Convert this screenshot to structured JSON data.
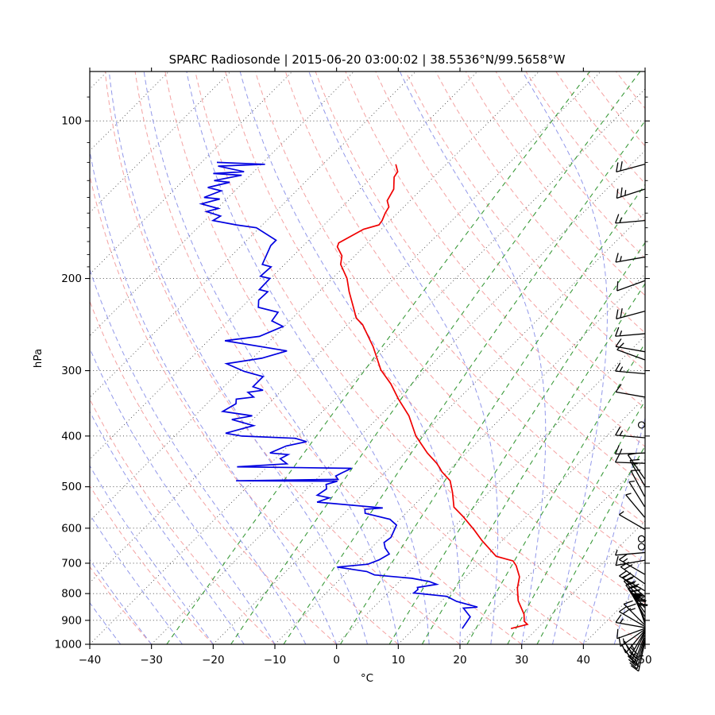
{
  "title": "SPARC Radiosonde | 2015-06-20 03:00:02 | 38.5536°N/99.5658°W",
  "axes": {
    "xlabel": "°C",
    "ylabel": "hPa",
    "xticks": [
      -40,
      -30,
      -20,
      -10,
      0,
      10,
      20,
      30,
      40,
      50
    ],
    "yticks": [
      100,
      200,
      300,
      400,
      500,
      600,
      700,
      800,
      900,
      1000
    ],
    "yticks_minor": [
      90,
      110,
      120,
      130,
      140,
      150,
      160,
      170,
      180,
      190
    ]
  },
  "chart_data": {
    "type": "line",
    "variant": "skew-t-log-p",
    "title": "SPARC Radiosonde | 2015-06-20 03:00:02 | 38.5536°N/99.5658°W",
    "xlabel": "°C",
    "ylabel": "hPa",
    "t_min": -40,
    "t_max": 50,
    "p_bottom": 1000,
    "p_top": 80.45,
    "skew_deg": 45,
    "grid": "on",
    "legend": "none",
    "colors": {
      "temperature": "#f00000",
      "dewpoint": "#0000e0",
      "isotherm": "#4d4d4d",
      "isobar": "#3d3d3d",
      "dry_adiabat": "#f4a2a2",
      "moist_adiabat": "#9298ea",
      "mixing_ratio": "#3a9a3a",
      "barb": "#000000"
    },
    "isotherms_c": {
      "start": -150,
      "end": 50,
      "step": 10
    },
    "dry_adiabats_theta_c": {
      "start": -40,
      "end": 200,
      "step": 10
    },
    "moist_adiabats_t0_c": {
      "start": -40,
      "end": 45,
      "step": 5
    },
    "mixing_ratio_g_kg": [
      0.4,
      1,
      2,
      4,
      7,
      10,
      16,
      24,
      32
    ],
    "pressure_gridlines_hpa": [
      100,
      200,
      300,
      400,
      500,
      600,
      700,
      800,
      900,
      1000
    ],
    "series": [
      {
        "name": "temperature",
        "units": [
          "hPa",
          "degC"
        ],
        "points": [
          [
            933,
            25.7
          ],
          [
            916,
            27.7
          ],
          [
            904,
            26.7
          ],
          [
            876,
            25.5
          ],
          [
            826,
            22.4
          ],
          [
            781,
            20.2
          ],
          [
            743,
            18.7
          ],
          [
            708,
            16.4
          ],
          [
            693,
            15.1
          ],
          [
            679,
            11.6
          ],
          [
            633,
            6.7
          ],
          [
            605,
            3.8
          ],
          [
            570,
            -0.2
          ],
          [
            547,
            -3.2
          ],
          [
            513,
            -5.8
          ],
          [
            487,
            -8.1
          ],
          [
            468,
            -10.9
          ],
          [
            460,
            -11.9
          ],
          [
            451,
            -13.1
          ],
          [
            431,
            -16.3
          ],
          [
            400,
            -20.9
          ],
          [
            366,
            -25.3
          ],
          [
            340,
            -29.7
          ],
          [
            318,
            -33.4
          ],
          [
            299,
            -37.3
          ],
          [
            270,
            -42.3
          ],
          [
            245,
            -47.6
          ],
          [
            238,
            -49.7
          ],
          [
            226,
            -52.1
          ],
          [
            212,
            -55.1
          ],
          [
            200,
            -57.6
          ],
          [
            188,
            -60.9
          ],
          [
            181,
            -62.1
          ],
          [
            174,
            -64.3
          ],
          [
            171,
            -64.7
          ],
          [
            161,
            -62.9
          ],
          [
            158,
            -61.1
          ],
          [
            155,
            -61.3
          ],
          [
            150,
            -62.0
          ],
          [
            146,
            -62.4
          ],
          [
            142,
            -63.7
          ],
          [
            135,
            -64.5
          ],
          [
            128,
            -66.4
          ],
          [
            125,
            -66.7
          ],
          [
            121,
            -68.2
          ]
        ]
      },
      {
        "name": "dewpoint",
        "units": [
          "hPa",
          "degC"
        ],
        "points": [
          [
            933,
            17.8
          ],
          [
            886,
            17.2
          ],
          [
            853,
            14.7
          ],
          [
            849,
            16.8
          ],
          [
            828,
            12.5
          ],
          [
            810,
            10.1
          ],
          [
            798,
            4.2
          ],
          [
            786,
            4.3
          ],
          [
            779,
            3.9
          ],
          [
            768,
            6.5
          ],
          [
            759,
            4.9
          ],
          [
            748,
            1.5
          ],
          [
            737,
            -5.1
          ],
          [
            726,
            -6.9
          ],
          [
            712,
            -12.4
          ],
          [
            703,
            -7.9
          ],
          [
            690,
            -6.8
          ],
          [
            672,
            -6.1
          ],
          [
            655,
            -7.7
          ],
          [
            639,
            -8.8
          ],
          [
            625,
            -8.5
          ],
          [
            610,
            -9.0
          ],
          [
            592,
            -9.6
          ],
          [
            577,
            -11.6
          ],
          [
            562,
            -16.6
          ],
          [
            552,
            -17.3
          ],
          [
            549,
            -14.6
          ],
          [
            535,
            -26.2
          ],
          [
            525,
            -24.9
          ],
          [
            519,
            -27.3
          ],
          [
            505,
            -26.8
          ],
          [
            495,
            -27.6
          ],
          [
            488,
            -26.3
          ],
          [
            487,
            -42.8
          ],
          [
            484,
            -26.5
          ],
          [
            477,
            -27.4
          ],
          [
            470,
            -26.9
          ],
          [
            461,
            -26.1
          ],
          [
            458,
            -44.9
          ],
          [
            452,
            -37.3
          ],
          [
            442,
            -39.2
          ],
          [
            434,
            -38.6
          ],
          [
            431,
            -41.8
          ],
          [
            418,
            -40.3
          ],
          [
            410,
            -37.7
          ],
          [
            404,
            -40.1
          ],
          [
            400,
            -49.1
          ],
          [
            395,
            -52.2
          ],
          [
            382,
            -48.9
          ],
          [
            372,
            -53.4
          ],
          [
            366,
            -50.7
          ],
          [
            359,
            -56.2
          ],
          [
            347,
            -55.3
          ],
          [
            340,
            -56.0
          ],
          [
            337,
            -53.5
          ],
          [
            330,
            -55.2
          ],
          [
            327,
            -53.1
          ],
          [
            322,
            -55.3
          ],
          [
            308,
            -55.3
          ],
          [
            301,
            -59.2
          ],
          [
            291,
            -63.3
          ],
          [
            284,
            -58.5
          ],
          [
            275,
            -55.6
          ],
          [
            263,
            -67.3
          ],
          [
            258,
            -62.4
          ],
          [
            247,
            -60.2
          ],
          [
            241,
            -62.9
          ],
          [
            232,
            -63.3
          ],
          [
            227,
            -67.3
          ],
          [
            220,
            -68.4
          ],
          [
            212,
            -68.3
          ],
          [
            210,
            -70.0
          ],
          [
            200,
            -70.1
          ],
          [
            198,
            -72.0
          ],
          [
            190,
            -71.8
          ],
          [
            188,
            -73.6
          ],
          [
            173,
            -75.3
          ],
          [
            169,
            -75.3
          ],
          [
            160,
            -80.5
          ],
          [
            158,
            -84.2
          ],
          [
            155,
            -88.7
          ],
          [
            152,
            -88.2
          ],
          [
            149,
            -91.2
          ],
          [
            147,
            -89.8
          ],
          [
            144,
            -93.3
          ],
          [
            141,
            -91.1
          ],
          [
            140,
            -93.9
          ],
          [
            136,
            -92.2
          ],
          [
            134,
            -94.9
          ],
          [
            131,
            -92.2
          ],
          [
            130,
            -95.0
          ],
          [
            127,
            -91.4
          ],
          [
            126,
            -96.3
          ],
          [
            125,
            -91.6
          ],
          [
            122,
            -96.7
          ],
          [
            121,
            -89.4
          ],
          [
            120,
            -97.5
          ]
        ]
      }
    ],
    "wind_barbs": {
      "note": "p_hpa, staff_screen_angle_deg (null = calm circle), full_barbs, half_barbs, flags",
      "list": [
        [
          121,
          195,
          2,
          0,
          0
        ],
        [
          135,
          198,
          2,
          1,
          0
        ],
        [
          155,
          185,
          1,
          1,
          0
        ],
        [
          182,
          190,
          1,
          1,
          0
        ],
        [
          202,
          200,
          1,
          0,
          0
        ],
        [
          231,
          195,
          2,
          0,
          0
        ],
        [
          255,
          185,
          1,
          1,
          0
        ],
        [
          276,
          170,
          1,
          0,
          0
        ],
        [
          286,
          160,
          1,
          0,
          0
        ],
        [
          304,
          175,
          1,
          1,
          0
        ],
        [
          337,
          170,
          1,
          0,
          0
        ],
        [
          381,
          null,
          0,
          0,
          0
        ],
        [
          403,
          175,
          1,
          1,
          0
        ],
        [
          431,
          182,
          1,
          1,
          0
        ],
        [
          451,
          178,
          1,
          0,
          0
        ],
        [
          483,
          125,
          1,
          0,
          0
        ],
        [
          498,
          120,
          1,
          1,
          0
        ],
        [
          522,
          118,
          1,
          0,
          0
        ],
        [
          546,
          122,
          0,
          1,
          0
        ],
        [
          572,
          130,
          0,
          1,
          0
        ],
        [
          603,
          150,
          0,
          1,
          0
        ],
        [
          629,
          null,
          0,
          0,
          0
        ],
        [
          651,
          null,
          0,
          0,
          0
        ],
        [
          668,
          185,
          0,
          1,
          0
        ],
        [
          691,
          190,
          1,
          0,
          0
        ],
        [
          735,
          150,
          1,
          1,
          0
        ],
        [
          766,
          145,
          2,
          0,
          0
        ],
        [
          790,
          150,
          2,
          1,
          0
        ],
        [
          810,
          140,
          2,
          0,
          0
        ],
        [
          830,
          135,
          3,
          0,
          0
        ],
        [
          851,
          130,
          3,
          0,
          0
        ],
        [
          869,
          125,
          3,
          1,
          0
        ],
        [
          885,
          120,
          3,
          0,
          0
        ],
        [
          898,
          115,
          1,
          1,
          1
        ],
        [
          905,
          112,
          2,
          0,
          1
        ],
        [
          912,
          108,
          3,
          0,
          0
        ],
        [
          918,
          135,
          2,
          1,
          0
        ],
        [
          924,
          150,
          2,
          0,
          0
        ],
        [
          929,
          170,
          1,
          1,
          0
        ],
        [
          933,
          200,
          1,
          0,
          0
        ],
        [
          937,
          215,
          1,
          1,
          0
        ],
        [
          941,
          230,
          2,
          0,
          0
        ],
        [
          945,
          240,
          2,
          1,
          0
        ],
        [
          950,
          245,
          2,
          0,
          0
        ],
        [
          960,
          250,
          3,
          0,
          0
        ],
        [
          972,
          252,
          2,
          1,
          0
        ],
        [
          983,
          255,
          3,
          0,
          0
        ],
        [
          992,
          258,
          2,
          0,
          0
        ]
      ]
    }
  }
}
